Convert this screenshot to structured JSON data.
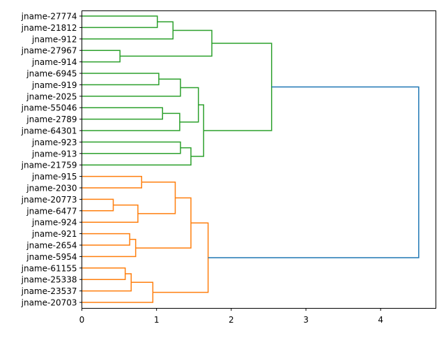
{
  "chart_data": {
    "type": "dendrogram",
    "title": "",
    "xlabel": "",
    "ylabel": "",
    "xlim": [
      0,
      4.74
    ],
    "xticks": [
      0,
      1,
      2,
      3,
      4
    ],
    "xtick_labels": [
      "0",
      "1",
      "2",
      "3",
      "4"
    ],
    "grid": false,
    "leaves": [
      "jname-27774",
      "jname-21812",
      "jname-912",
      "jname-27967",
      "jname-914",
      "jname-6945",
      "jname-919",
      "jname-2025",
      "jname-55046",
      "jname-2789",
      "jname-64301",
      "jname-923",
      "jname-913",
      "jname-21759",
      "jname-915",
      "jname-2030",
      "jname-20773",
      "jname-6477",
      "jname-924",
      "jname-921",
      "jname-2654",
      "jname-5954",
      "jname-61155",
      "jname-25338",
      "jname-23537",
      "jname-20703"
    ],
    "colors": {
      "green": "#2ca02c",
      "orange": "#ff7f0e",
      "blue": "#1f77b4"
    },
    "merges": [
      {
        "children": [
          0,
          1
        ],
        "height": 1.01,
        "color": "green"
      },
      {
        "children": [
          26,
          2
        ],
        "height": 1.22,
        "color": "green"
      },
      {
        "children": [
          3,
          4
        ],
        "height": 0.51,
        "color": "green"
      },
      {
        "children": [
          27,
          28
        ],
        "height": 1.74,
        "color": "green"
      },
      {
        "children": [
          5,
          6
        ],
        "height": 1.03,
        "color": "green"
      },
      {
        "children": [
          30,
          7
        ],
        "height": 1.32,
        "color": "green"
      },
      {
        "children": [
          8,
          9
        ],
        "height": 1.08,
        "color": "green"
      },
      {
        "children": [
          32,
          10
        ],
        "height": 1.31,
        "color": "green"
      },
      {
        "children": [
          31,
          33
        ],
        "height": 1.56,
        "color": "green"
      },
      {
        "children": [
          11,
          12
        ],
        "height": 1.32,
        "color": "green"
      },
      {
        "children": [
          35,
          13
        ],
        "height": 1.46,
        "color": "green"
      },
      {
        "children": [
          34,
          36
        ],
        "height": 1.63,
        "color": "green"
      },
      {
        "children": [
          29,
          37
        ],
        "height": 2.54,
        "color": "green"
      },
      {
        "children": [
          14,
          15
        ],
        "height": 0.8,
        "color": "orange"
      },
      {
        "children": [
          16,
          17
        ],
        "height": 0.42,
        "color": "orange"
      },
      {
        "children": [
          40,
          18
        ],
        "height": 0.75,
        "color": "orange"
      },
      {
        "children": [
          39,
          41
        ],
        "height": 1.25,
        "color": "orange"
      },
      {
        "children": [
          19,
          20
        ],
        "height": 0.64,
        "color": "orange"
      },
      {
        "children": [
          43,
          21
        ],
        "height": 0.72,
        "color": "orange"
      },
      {
        "children": [
          42,
          44
        ],
        "height": 1.46,
        "color": "orange"
      },
      {
        "children": [
          22,
          23
        ],
        "height": 0.58,
        "color": "orange"
      },
      {
        "children": [
          46,
          24
        ],
        "height": 0.66,
        "color": "orange"
      },
      {
        "children": [
          47,
          25
        ],
        "height": 0.95,
        "color": "orange"
      },
      {
        "children": [
          45,
          48
        ],
        "height": 1.69,
        "color": "orange"
      },
      {
        "children": [
          38,
          49
        ],
        "height": 4.51,
        "color": "blue"
      }
    ]
  }
}
